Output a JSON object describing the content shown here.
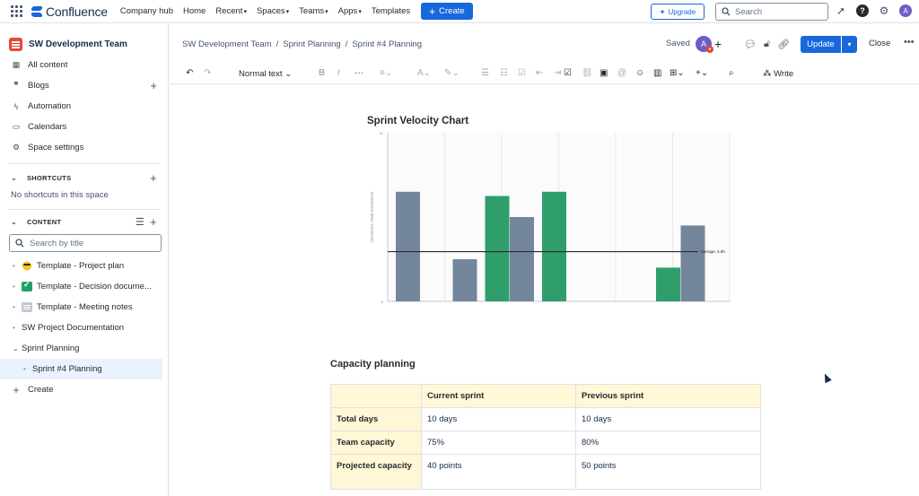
{
  "topnav": {
    "logo_text": "Confluence",
    "items": [
      {
        "label": "Company hub",
        "dropdown": false
      },
      {
        "label": "Home",
        "dropdown": false
      },
      {
        "label": "Recent",
        "dropdown": true
      },
      {
        "label": "Spaces",
        "dropdown": true
      },
      {
        "label": "Teams",
        "dropdown": true
      },
      {
        "label": "Apps",
        "dropdown": true
      },
      {
        "label": "Templates",
        "dropdown": false
      }
    ],
    "create_label": "Create",
    "upgrade_label": "Upgrade",
    "search_placeholder": "Search",
    "avatar_initial": "A",
    "accent": "#1868db"
  },
  "sidebar": {
    "space_name": "SW Development Team",
    "items": [
      {
        "label": "All content",
        "icon": "grid-icon"
      },
      {
        "label": "Blogs",
        "icon": "quote-icon"
      },
      {
        "label": "Automation",
        "icon": "lightning-icon"
      },
      {
        "label": "Calendars",
        "icon": "calendar-icon"
      },
      {
        "label": "Space settings",
        "icon": "gear-icon"
      }
    ],
    "shortcuts_label": "SHORTCUTS",
    "shortcuts_empty": "No shortcuts in this space",
    "content_label": "CONTENT",
    "search_placeholder": "Search by title",
    "tree": [
      {
        "label": "Template - Project plan",
        "icon": "sunglasses-emoji"
      },
      {
        "label": "Template - Decision docume...",
        "icon": "check-emoji"
      },
      {
        "label": "Template - Meeting notes",
        "icon": "note-emoji"
      },
      {
        "label": "SW Project Documentation",
        "icon": ""
      },
      {
        "label": "Sprint Planning",
        "icon": "",
        "expanded": true
      },
      {
        "label": "Sprint #4 Planning",
        "icon": "",
        "active": true
      }
    ],
    "create_label": "Create"
  },
  "breadcrumb": {
    "items": [
      "SW Development Team",
      "Sprint Planning",
      "Sprint #4 Planning"
    ],
    "saved_label": "Saved",
    "collaborator_initial": "A",
    "update_label": "Update",
    "close_label": "Close"
  },
  "toolbar": {
    "text_style": "Normal text",
    "write_label": "Write"
  },
  "chart_data": {
    "type": "bar",
    "title": "Sprint Velocity Chart",
    "ylabel": "ORIGINAL TIME ESTIMATE",
    "ylim": [
      0,
      20
    ],
    "ticks": [
      "20",
      "0"
    ],
    "categories": [
      "",
      "",
      "",
      "",
      "",
      ""
    ],
    "series": [
      {
        "color": "#74869c",
        "values": [
          13,
          5,
          10,
          0,
          0,
          9
        ]
      },
      {
        "color": "#2f9e6b",
        "values": [
          0,
          12.5,
          13,
          0,
          4,
          0
        ]
      }
    ],
    "average": {
      "value": 5.9,
      "label": "Average: 5.9h"
    },
    "grid": true
  },
  "capacity": {
    "title": "Capacity planning",
    "headers": [
      "",
      "Current sprint",
      "Previous sprint"
    ],
    "rows": [
      {
        "label": "Total days",
        "current": "10 days",
        "previous": "10 days"
      },
      {
        "label": "Team capacity",
        "current": "75%",
        "previous": "80%"
      },
      {
        "label": "Projected capacity",
        "current": "40 points",
        "previous": "50 points"
      }
    ]
  }
}
